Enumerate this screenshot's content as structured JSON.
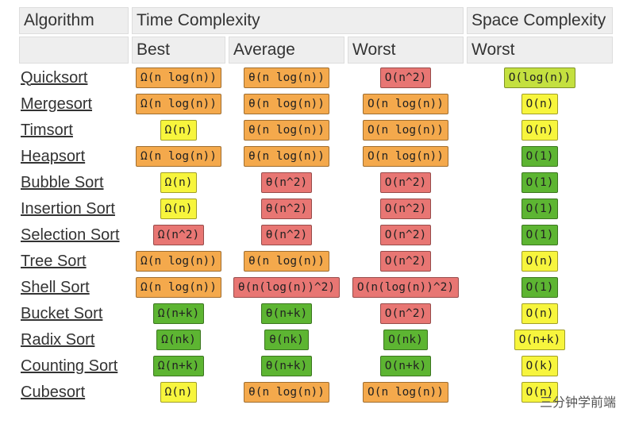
{
  "header": {
    "algorithm": "Algorithm",
    "time": "Time Complexity",
    "space": "Space Complexity",
    "best": "Best",
    "average": "Average",
    "worst": "Worst",
    "space_worst": "Worst"
  },
  "table": {
    "rows": [
      {
        "name": "Quicksort",
        "cells": [
          {
            "text": "Ω(n log(n))",
            "color": "#f4a94c"
          },
          {
            "text": "θ(n log(n))",
            "color": "#f4a94c"
          },
          {
            "text": "O(n^2)",
            "color": "#e87673"
          },
          {
            "text": "O(log(n))",
            "color": "#c4e03f"
          }
        ]
      },
      {
        "name": "Mergesort",
        "cells": [
          {
            "text": "Ω(n log(n))",
            "color": "#f4a94c"
          },
          {
            "text": "θ(n log(n))",
            "color": "#f4a94c"
          },
          {
            "text": "O(n log(n))",
            "color": "#f4a94c"
          },
          {
            "text": "O(n)",
            "color": "#f7f53d"
          }
        ]
      },
      {
        "name": "Timsort",
        "cells": [
          {
            "text": "Ω(n)",
            "color": "#f7f53d"
          },
          {
            "text": "θ(n log(n))",
            "color": "#f4a94c"
          },
          {
            "text": "O(n log(n))",
            "color": "#f4a94c"
          },
          {
            "text": "O(n)",
            "color": "#f7f53d"
          }
        ]
      },
      {
        "name": "Heapsort",
        "cells": [
          {
            "text": "Ω(n log(n))",
            "color": "#f4a94c"
          },
          {
            "text": "θ(n log(n))",
            "color": "#f4a94c"
          },
          {
            "text": "O(n log(n))",
            "color": "#f4a94c"
          },
          {
            "text": "O(1)",
            "color": "#5db532"
          }
        ]
      },
      {
        "name": "Bubble Sort",
        "cells": [
          {
            "text": "Ω(n)",
            "color": "#f7f53d"
          },
          {
            "text": "θ(n^2)",
            "color": "#e87673"
          },
          {
            "text": "O(n^2)",
            "color": "#e87673"
          },
          {
            "text": "O(1)",
            "color": "#5db532"
          }
        ]
      },
      {
        "name": "Insertion Sort",
        "cells": [
          {
            "text": "Ω(n)",
            "color": "#f7f53d"
          },
          {
            "text": "θ(n^2)",
            "color": "#e87673"
          },
          {
            "text": "O(n^2)",
            "color": "#e87673"
          },
          {
            "text": "O(1)",
            "color": "#5db532"
          }
        ]
      },
      {
        "name": "Selection Sort",
        "cells": [
          {
            "text": "Ω(n^2)",
            "color": "#e87673"
          },
          {
            "text": "θ(n^2)",
            "color": "#e87673"
          },
          {
            "text": "O(n^2)",
            "color": "#e87673"
          },
          {
            "text": "O(1)",
            "color": "#5db532"
          }
        ]
      },
      {
        "name": "Tree Sort",
        "cells": [
          {
            "text": "Ω(n log(n))",
            "color": "#f4a94c"
          },
          {
            "text": "θ(n log(n))",
            "color": "#f4a94c"
          },
          {
            "text": "O(n^2)",
            "color": "#e87673"
          },
          {
            "text": "O(n)",
            "color": "#f7f53d"
          }
        ]
      },
      {
        "name": "Shell Sort",
        "cells": [
          {
            "text": "Ω(n log(n))",
            "color": "#f4a94c"
          },
          {
            "text": "θ(n(log(n))^2)",
            "color": "#e87673"
          },
          {
            "text": "O(n(log(n))^2)",
            "color": "#e87673"
          },
          {
            "text": "O(1)",
            "color": "#5db532"
          }
        ]
      },
      {
        "name": "Bucket Sort",
        "cells": [
          {
            "text": "Ω(n+k)",
            "color": "#5db532"
          },
          {
            "text": "θ(n+k)",
            "color": "#5db532"
          },
          {
            "text": "O(n^2)",
            "color": "#e87673"
          },
          {
            "text": "O(n)",
            "color": "#f7f53d"
          }
        ]
      },
      {
        "name": "Radix Sort",
        "cells": [
          {
            "text": "Ω(nk)",
            "color": "#5db532"
          },
          {
            "text": "θ(nk)",
            "color": "#5db532"
          },
          {
            "text": "O(nk)",
            "color": "#5db532"
          },
          {
            "text": "O(n+k)",
            "color": "#f7f53d"
          }
        ]
      },
      {
        "name": "Counting Sort",
        "cells": [
          {
            "text": "Ω(n+k)",
            "color": "#5db532"
          },
          {
            "text": "θ(n+k)",
            "color": "#5db532"
          },
          {
            "text": "O(n+k)",
            "color": "#5db532"
          },
          {
            "text": "O(k)",
            "color": "#f7f53d"
          }
        ]
      },
      {
        "name": "Cubesort",
        "cells": [
          {
            "text": "Ω(n)",
            "color": "#f7f53d"
          },
          {
            "text": "θ(n log(n))",
            "color": "#f4a94c"
          },
          {
            "text": "O(n log(n))",
            "color": "#f4a94c"
          },
          {
            "text": "O(n)",
            "color": "#f7f53d"
          }
        ]
      }
    ]
  },
  "watermark": "三分钟学前端"
}
